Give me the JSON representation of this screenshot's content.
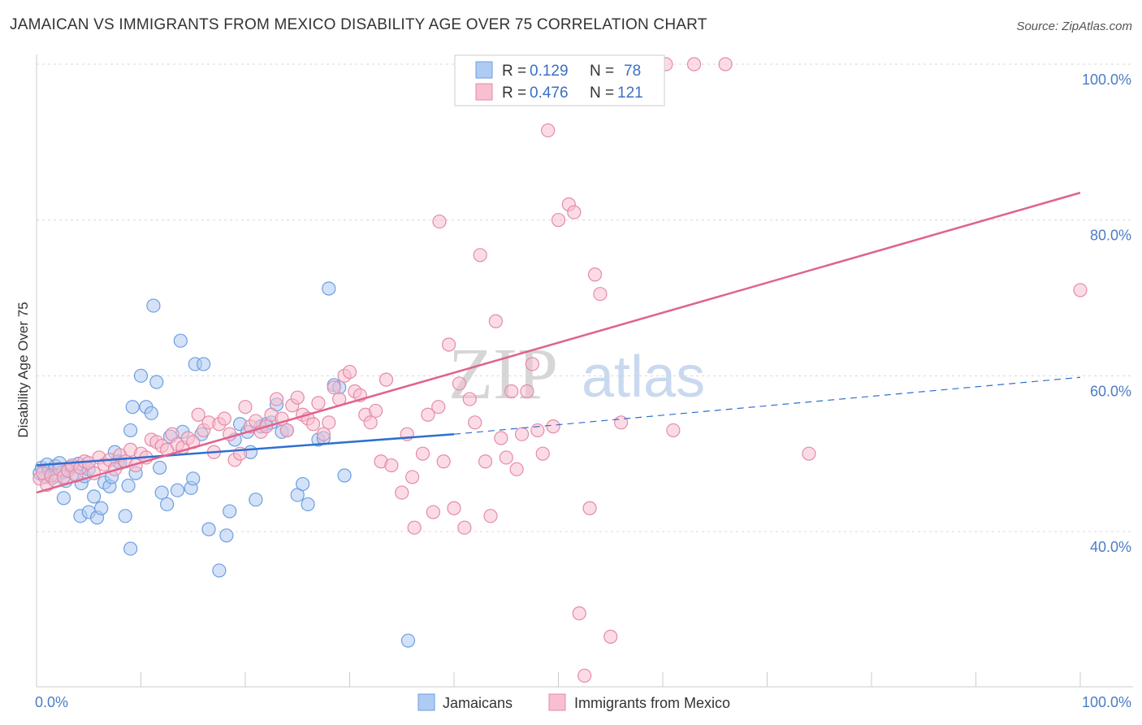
{
  "header": {
    "title": "JAMAICAN VS IMMIGRANTS FROM MEXICO DISABILITY AGE OVER 75 CORRELATION CHART",
    "source": "Source: ZipAtlas.com"
  },
  "watermark": {
    "part1": "ZIP",
    "part2": "atlas"
  },
  "legend": {
    "r_label": "R =",
    "n_label": "N =",
    "series": [
      {
        "r": "0.129",
        "n": "78"
      },
      {
        "r": "0.476",
        "n": "121"
      }
    ]
  },
  "colors": {
    "blue_fill": "#aecbf2",
    "blue_stroke": "#6c9ee0",
    "blue_line": "#2f6fcf",
    "pink_fill": "#f7bfd0",
    "pink_stroke": "#e58aa8",
    "pink_line": "#e0628d",
    "tick_text": "#4a7cc7",
    "grid": "#d8d8d8"
  },
  "chart_data": {
    "type": "scatter",
    "title": "JAMAICAN VS IMMIGRANTS FROM MEXICO DISABILITY AGE OVER 75 CORRELATION CHART",
    "xlabel": "",
    "ylabel": "Disability Age Over 75",
    "xlim": [
      0,
      100
    ],
    "ylim": [
      20,
      102
    ],
    "x_tick_labels": [
      "0.0%",
      "100.0%"
    ],
    "y_ticks": [
      40,
      60,
      80,
      100
    ],
    "y_tick_labels": [
      "40.0%",
      "60.0%",
      "80.0%",
      "100.0%"
    ],
    "grid": true,
    "legend_position": "top-center",
    "series": [
      {
        "name": "Jamaicans",
        "r": 0.129,
        "n": 78,
        "trend": {
          "x": [
            0,
            40
          ],
          "y": [
            48.5,
            52.5
          ],
          "dashed_extension": {
            "x": [
              40,
              100
            ],
            "y": [
              52.5,
              59.8
            ]
          }
        },
        "points": [
          [
            0.3,
            47.5
          ],
          [
            0.5,
            48.2
          ],
          [
            0.8,
            47.0
          ],
          [
            1.0,
            48.6
          ],
          [
            1.2,
            47.8
          ],
          [
            1.5,
            46.9
          ],
          [
            1.8,
            48.4
          ],
          [
            2.0,
            47.2
          ],
          [
            2.2,
            48.8
          ],
          [
            2.5,
            47.6
          ],
          [
            2.8,
            46.5
          ],
          [
            3.0,
            47.9
          ],
          [
            3.3,
            48.3
          ],
          [
            3.6,
            47.4
          ],
          [
            4.0,
            48.7
          ],
          [
            4.3,
            46.2
          ],
          [
            4.6,
            47.1
          ],
          [
            5.0,
            48.0
          ],
          [
            5.5,
            44.5
          ],
          [
            2.6,
            44.3
          ],
          [
            4.2,
            42.0
          ],
          [
            5.0,
            42.5
          ],
          [
            5.8,
            41.8
          ],
          [
            6.2,
            43.0
          ],
          [
            6.5,
            46.3
          ],
          [
            7.0,
            45.8
          ],
          [
            7.5,
            50.2
          ],
          [
            7.8,
            49.0
          ],
          [
            8.0,
            48.8
          ],
          [
            7.2,
            47.0
          ],
          [
            8.5,
            42.0
          ],
          [
            8.8,
            45.9
          ],
          [
            9.0,
            37.8
          ],
          [
            9.5,
            47.5
          ],
          [
            9.0,
            53.0
          ],
          [
            9.2,
            56.0
          ],
          [
            10.0,
            60.0
          ],
          [
            10.5,
            56.0
          ],
          [
            11.0,
            55.2
          ],
          [
            11.2,
            69.0
          ],
          [
            11.5,
            59.2
          ],
          [
            11.8,
            48.2
          ],
          [
            12.0,
            45.0
          ],
          [
            12.5,
            43.5
          ],
          [
            12.8,
            52.2
          ],
          [
            13.5,
            45.3
          ],
          [
            13.8,
            64.5
          ],
          [
            14.0,
            52.8
          ],
          [
            14.8,
            45.6
          ],
          [
            15.0,
            46.8
          ],
          [
            15.2,
            61.5
          ],
          [
            15.8,
            52.5
          ],
          [
            16.0,
            61.5
          ],
          [
            16.5,
            40.3
          ],
          [
            17.5,
            35.0
          ],
          [
            18.2,
            39.5
          ],
          [
            18.5,
            42.6
          ],
          [
            19.0,
            51.8
          ],
          [
            19.5,
            53.8
          ],
          [
            20.2,
            52.8
          ],
          [
            20.5,
            50.2
          ],
          [
            21.0,
            44.1
          ],
          [
            21.5,
            53.5
          ],
          [
            22.0,
            53.8
          ],
          [
            22.5,
            54.0
          ],
          [
            23.0,
            56.3
          ],
          [
            23.5,
            52.8
          ],
          [
            24.0,
            53.0
          ],
          [
            25.0,
            44.7
          ],
          [
            25.5,
            46.1
          ],
          [
            26.0,
            43.5
          ],
          [
            27.0,
            51.8
          ],
          [
            27.5,
            52.0
          ],
          [
            28.0,
            71.2
          ],
          [
            28.5,
            58.8
          ],
          [
            29.0,
            58.5
          ],
          [
            29.5,
            47.2
          ],
          [
            35.6,
            26.0
          ]
        ]
      },
      {
        "name": "Immigrants from Mexico",
        "r": 0.476,
        "n": 121,
        "trend": {
          "x": [
            0,
            100
          ],
          "y": [
            45.0,
            83.5
          ]
        },
        "points": [
          [
            0.3,
            46.8
          ],
          [
            0.6,
            47.5
          ],
          [
            1.0,
            46.0
          ],
          [
            1.4,
            47.2
          ],
          [
            1.8,
            46.5
          ],
          [
            2.2,
            48.0
          ],
          [
            2.6,
            47.0
          ],
          [
            3.0,
            47.8
          ],
          [
            3.4,
            48.5
          ],
          [
            3.8,
            47.2
          ],
          [
            4.2,
            48.2
          ],
          [
            4.6,
            49.0
          ],
          [
            5.0,
            48.8
          ],
          [
            5.5,
            47.5
          ],
          [
            6.0,
            49.5
          ],
          [
            6.5,
            48.6
          ],
          [
            7.0,
            49.2
          ],
          [
            7.5,
            48.0
          ],
          [
            8.0,
            49.8
          ],
          [
            8.5,
            49.0
          ],
          [
            9.0,
            50.5
          ],
          [
            9.5,
            48.5
          ],
          [
            10.0,
            50.0
          ],
          [
            10.5,
            49.5
          ],
          [
            11.0,
            51.8
          ],
          [
            11.5,
            51.5
          ],
          [
            12.0,
            51.0
          ],
          [
            12.5,
            50.5
          ],
          [
            13.0,
            52.5
          ],
          [
            13.5,
            51.2
          ],
          [
            14.0,
            50.8
          ],
          [
            14.5,
            52.0
          ],
          [
            15.0,
            51.5
          ],
          [
            15.5,
            55.0
          ],
          [
            16.0,
            53.0
          ],
          [
            16.5,
            54.0
          ],
          [
            17.0,
            50.2
          ],
          [
            17.5,
            53.8
          ],
          [
            18.0,
            54.5
          ],
          [
            18.5,
            52.5
          ],
          [
            19.0,
            49.2
          ],
          [
            19.5,
            50.0
          ],
          [
            20.0,
            56.0
          ],
          [
            20.5,
            53.5
          ],
          [
            21.0,
            54.2
          ],
          [
            21.5,
            52.8
          ],
          [
            22.0,
            53.5
          ],
          [
            22.5,
            55.0
          ],
          [
            23.0,
            57.0
          ],
          [
            23.5,
            54.5
          ],
          [
            24.0,
            53.0
          ],
          [
            24.5,
            56.2
          ],
          [
            25.0,
            57.2
          ],
          [
            25.5,
            55.0
          ],
          [
            26.0,
            54.5
          ],
          [
            26.5,
            53.8
          ],
          [
            27.0,
            56.5
          ],
          [
            27.5,
            52.5
          ],
          [
            28.0,
            54.0
          ],
          [
            28.5,
            58.5
          ],
          [
            29.0,
            57.0
          ],
          [
            29.5,
            60.0
          ],
          [
            30.0,
            60.5
          ],
          [
            30.5,
            58.0
          ],
          [
            31.0,
            57.5
          ],
          [
            31.5,
            55.0
          ],
          [
            32.0,
            54.0
          ],
          [
            32.5,
            55.5
          ],
          [
            33.0,
            49.0
          ],
          [
            33.5,
            59.5
          ],
          [
            34.0,
            48.5
          ],
          [
            35.0,
            45.0
          ],
          [
            35.5,
            52.5
          ],
          [
            36.0,
            47.0
          ],
          [
            37.0,
            50.0
          ],
          [
            37.5,
            55.0
          ],
          [
            38.0,
            42.5
          ],
          [
            38.5,
            56.0
          ],
          [
            39.0,
            49.0
          ],
          [
            39.5,
            64.0
          ],
          [
            40.0,
            43.0
          ],
          [
            40.5,
            59.0
          ],
          [
            41.0,
            40.5
          ],
          [
            41.5,
            57.0
          ],
          [
            42.0,
            54.0
          ],
          [
            42.5,
            75.5
          ],
          [
            43.0,
            49.0
          ],
          [
            43.5,
            42.0
          ],
          [
            44.0,
            67.0
          ],
          [
            44.5,
            52.0
          ],
          [
            45.0,
            49.5
          ],
          [
            45.5,
            58.0
          ],
          [
            46.0,
            48.0
          ],
          [
            46.5,
            52.5
          ],
          [
            47.0,
            58.0
          ],
          [
            47.5,
            61.5
          ],
          [
            48.0,
            53.0
          ],
          [
            48.5,
            50.0
          ],
          [
            49.0,
            91.5
          ],
          [
            49.5,
            53.5
          ],
          [
            50.0,
            80.0
          ],
          [
            50.5,
            98.0
          ],
          [
            51.0,
            82.0
          ],
          [
            51.5,
            81.0
          ],
          [
            52.0,
            29.5
          ],
          [
            52.5,
            21.5
          ],
          [
            53.0,
            43.0
          ],
          [
            53.5,
            73.0
          ],
          [
            54.0,
            70.5
          ],
          [
            55.0,
            26.5
          ],
          [
            56.0,
            54.0
          ],
          [
            58.0,
            100.0
          ],
          [
            58.2,
            100.0
          ],
          [
            60.3,
            100.0
          ],
          [
            63.0,
            100.0
          ],
          [
            66.0,
            100.0
          ],
          [
            74.0,
            50.0
          ],
          [
            100.0,
            71.0
          ],
          [
            36.2,
            40.5
          ],
          [
            38.6,
            79.8
          ],
          [
            61.0,
            53.0
          ]
        ]
      }
    ]
  }
}
